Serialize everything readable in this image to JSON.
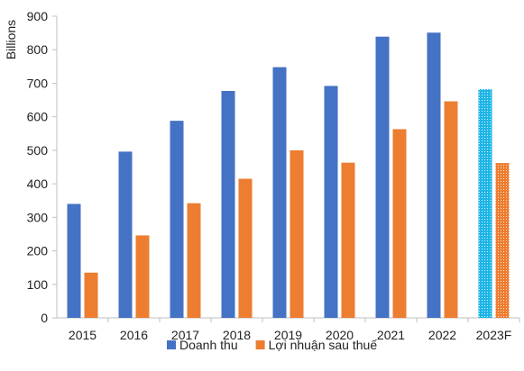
{
  "chart_data": {
    "type": "bar",
    "title": "",
    "xlabel": "",
    "ylabel": "Billions",
    "ylim": [
      0,
      900
    ],
    "yticks": [
      0,
      100,
      200,
      300,
      400,
      500,
      600,
      700,
      800,
      900
    ],
    "categories": [
      "2015",
      "2016",
      "2017",
      "2018",
      "2019",
      "2020",
      "2021",
      "2022",
      "2023F"
    ],
    "series": [
      {
        "name": "Doanh thu",
        "color": "#4472C4",
        "values": [
          340,
          496,
          588,
          677,
          748,
          692,
          839,
          851,
          682
        ],
        "forecast_color": "#1EB4E6"
      },
      {
        "name": "Lợi nhuận sau thuế",
        "color": "#ED7D31",
        "values": [
          135,
          246,
          342,
          415,
          500,
          463,
          563,
          646,
          462
        ],
        "forecast_color": "#ED7D31"
      }
    ],
    "forecast_category": "2023F",
    "legend": {
      "position": "bottom"
    },
    "grid": false
  }
}
